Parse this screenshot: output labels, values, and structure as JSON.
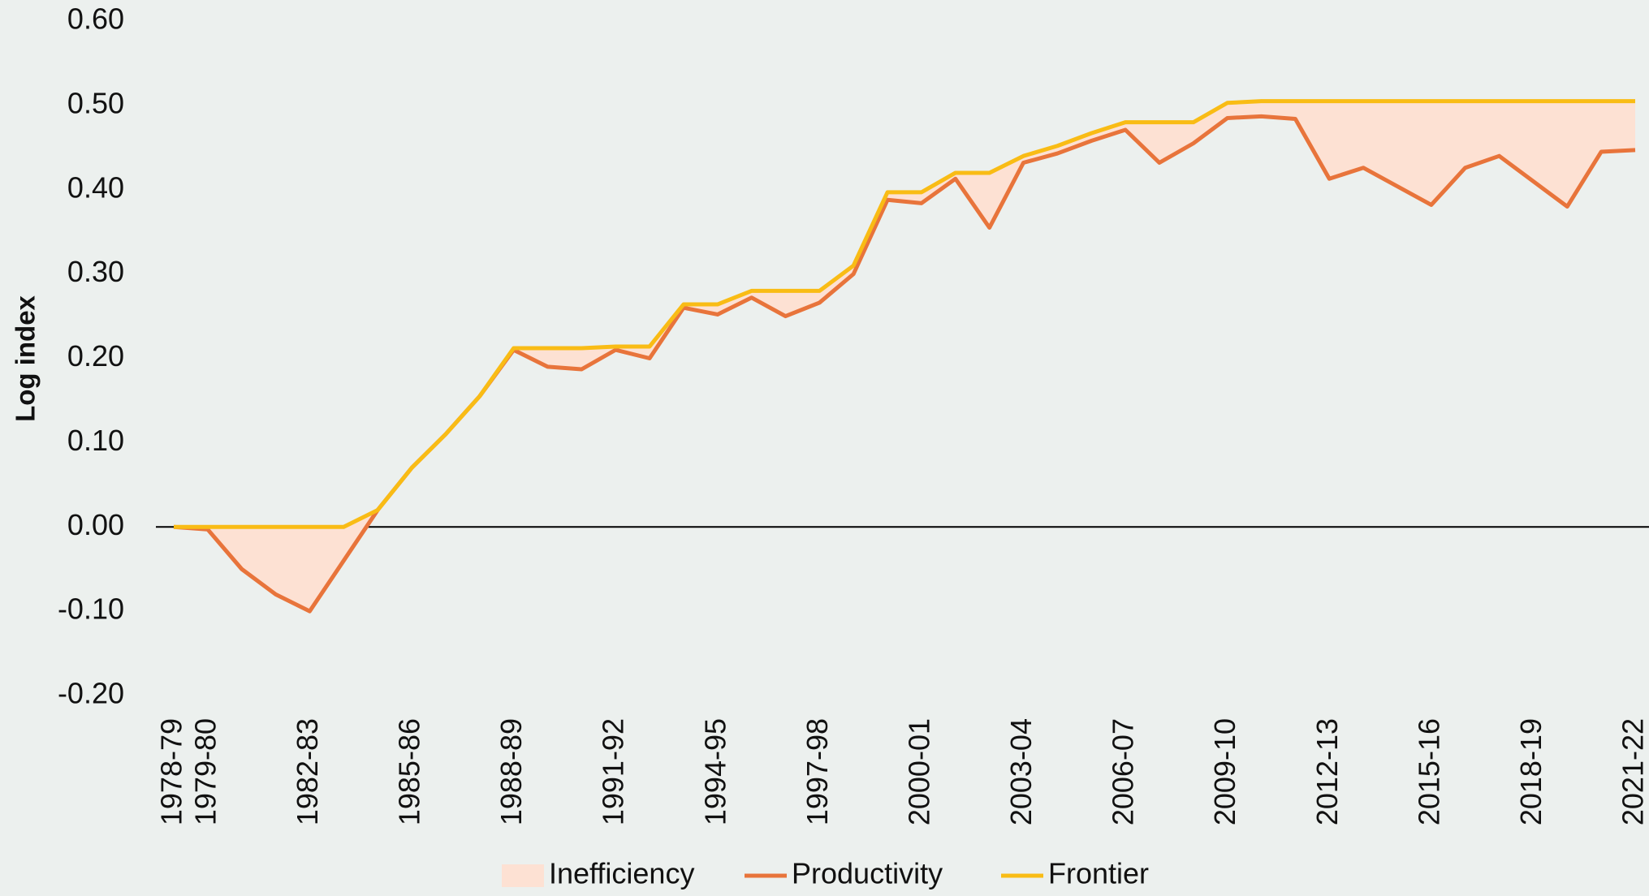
{
  "chart_data": {
    "type": "line",
    "y_label": "Log index",
    "categories": [
      "1978-79",
      "1979-80",
      null,
      null,
      "1982-83",
      null,
      null,
      "1985-86",
      null,
      null,
      "1988-89",
      null,
      null,
      "1991-92",
      null,
      null,
      "1994-95",
      null,
      null,
      "1997-98",
      null,
      null,
      "2000-01",
      null,
      null,
      "2003-04",
      null,
      null,
      "2006-07",
      null,
      null,
      "2009-10",
      null,
      null,
      "2012-13",
      null,
      null,
      "2015-16",
      null,
      null,
      "2018-19",
      null,
      null,
      "2021-22"
    ],
    "series": [
      {
        "name": "Inefficiency",
        "color": "#fde1d3",
        "stacked_on": "Productivity",
        "values": [
          0,
          0.003,
          0.05,
          0.08,
          0.1,
          0.04,
          0,
          0,
          0,
          0,
          0.002,
          0.022,
          0.025,
          0.004,
          0.014,
          0.004,
          0.012,
          0.008,
          0.03,
          0.014,
          0.01,
          0.009,
          0.013,
          0.007,
          0.065,
          0.008,
          0.009,
          0.009,
          0.009,
          0.048,
          0.025,
          0.018,
          0.018,
          0.021,
          0.092,
          0.079,
          0.101,
          0.123,
          0.079,
          0.065,
          0.095,
          0.125,
          0.06,
          0.058
        ]
      },
      {
        "name": "Productivity",
        "color": "#e8743b",
        "values": [
          0,
          -0.003,
          -0.05,
          -0.08,
          -0.1,
          -0.04,
          0.02,
          0.07,
          0.11,
          0.155,
          0.21,
          0.19,
          0.187,
          0.21,
          0.2,
          0.26,
          0.252,
          0.272,
          0.25,
          0.266,
          0.3,
          0.388,
          0.384,
          0.413,
          0.355,
          0.432,
          0.443,
          0.458,
          0.471,
          0.432,
          0.455,
          0.485,
          0.487,
          0.484,
          0.413,
          0.426,
          0.404,
          0.382,
          0.426,
          0.44,
          0.41,
          0.38,
          0.445,
          0.447
        ]
      },
      {
        "name": "Frontier",
        "color": "#f9bc15",
        "values": [
          0,
          0,
          0,
          0,
          0,
          0,
          0.02,
          0.07,
          0.11,
          0.155,
          0.212,
          0.212,
          0.212,
          0.214,
          0.214,
          0.264,
          0.264,
          0.28,
          0.28,
          0.28,
          0.31,
          0.397,
          0.397,
          0.42,
          0.42,
          0.44,
          0.452,
          0.467,
          0.48,
          0.48,
          0.48,
          0.503,
          0.505,
          0.505,
          0.505,
          0.505,
          0.505,
          0.505,
          0.505,
          0.505,
          0.505,
          0.505,
          0.505,
          0.505
        ]
      }
    ],
    "ylim": [
      -0.2,
      0.6
    ],
    "yticks": [
      {
        "value": -0.2,
        "label": "-0.20"
      },
      {
        "value": -0.1,
        "label": "-0.10"
      },
      {
        "value": 0,
        "label": "0.00"
      },
      {
        "value": 0.1,
        "label": "0.10"
      },
      {
        "value": 0.2,
        "label": "0.20"
      },
      {
        "value": 0.3,
        "label": "0.30"
      },
      {
        "value": 0.4,
        "label": "0.40"
      },
      {
        "value": 0.5,
        "label": "0.50"
      },
      {
        "value": 0.6,
        "label": "0.60"
      }
    ],
    "grid": false,
    "legend": "bottom"
  }
}
